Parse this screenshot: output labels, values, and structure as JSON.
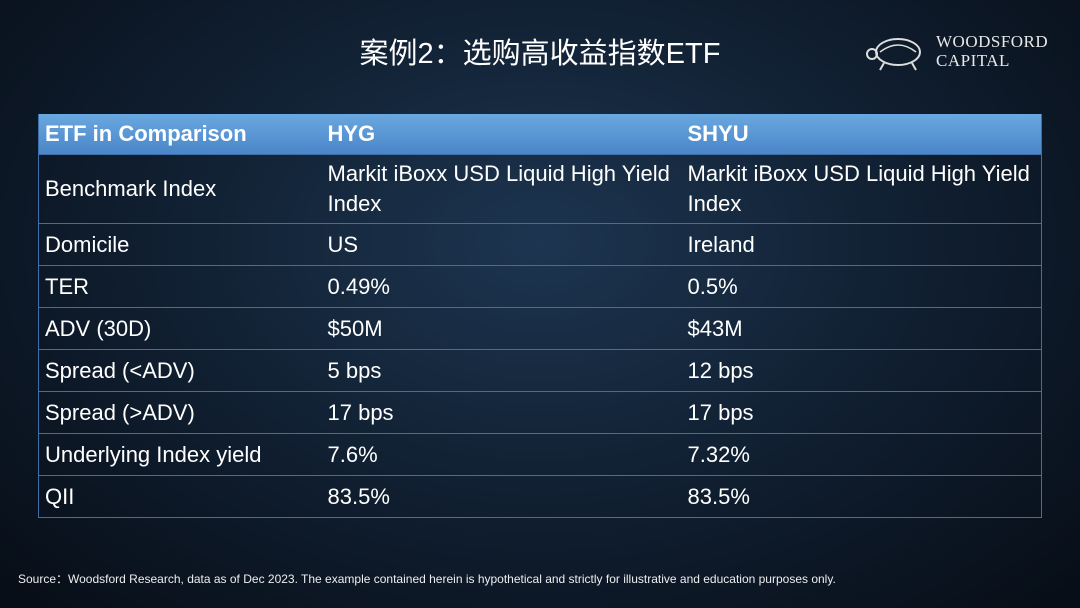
{
  "header": {
    "title": "案例2：选购高收益指数ETF",
    "logo": {
      "line1": "WOODSFORD",
      "line2": "CAPITAL"
    }
  },
  "table": {
    "columns": [
      "ETF in Comparison",
      "HYG",
      "SHYU"
    ],
    "rows": [
      [
        "Benchmark Index",
        "Markit iBoxx USD Liquid High Yield Index",
        "Markit iBoxx USD Liquid High Yield Index"
      ],
      [
        "Domicile",
        "US",
        "Ireland"
      ],
      [
        "TER",
        "0.49%",
        "0.5%"
      ],
      [
        "ADV (30D)",
        "$50M",
        "$43M"
      ],
      [
        "Spread (<ADV)",
        "5 bps",
        "12 bps"
      ],
      [
        "Spread (>ADV)",
        "17 bps",
        "17 bps"
      ],
      [
        "Underlying Index yield",
        "7.6%",
        "7.32%"
      ],
      [
        "QII",
        "83.5%",
        "83.5%"
      ]
    ]
  },
  "footer": {
    "source": "Source：Woodsford Research, data as of Dec 2023.  The example contained herein is hypothetical and strictly for illustrative and education purposes only."
  }
}
